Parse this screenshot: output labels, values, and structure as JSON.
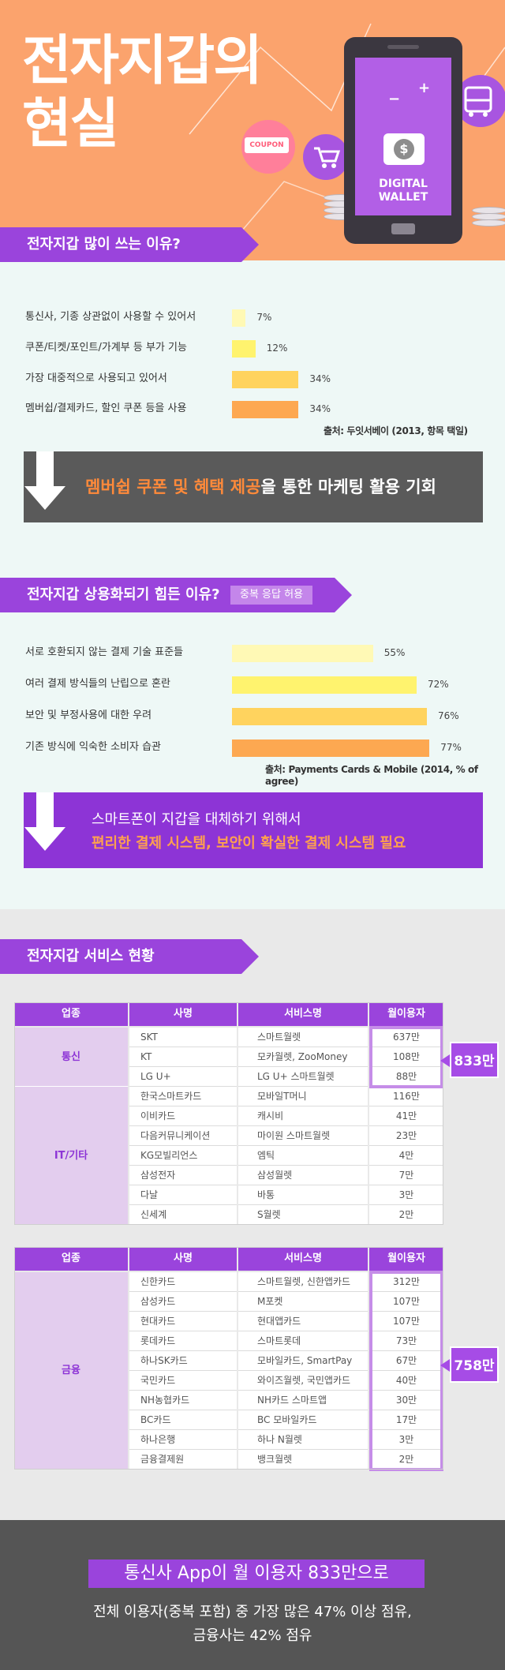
{
  "hero": {
    "title_line1": "전자지갑의",
    "title_line2": "현실",
    "coupon": "COUPON",
    "wallet_line1": "DIGITAL",
    "wallet_line2": "WALLET",
    "plus": "+",
    "minus": "−"
  },
  "section1": {
    "tag": "전자지갑 많이 쓰는 이유?",
    "bars": [
      {
        "label": "통신사, 기종 상관없이 사용할 수 있어서",
        "value": 7,
        "value_text": "7%",
        "color": "#fff9b5"
      },
      {
        "label": "쿠폰/티켓/포인트/가계부 등 부가 기능",
        "value": 12,
        "value_text": "12%",
        "color": "#fff36e"
      },
      {
        "label": "가장 대중적으로 사용되고 있어서",
        "value": 34,
        "value_text": "34%",
        "color": "#ffd35e"
      },
      {
        "label": "멤버쉽/결제카드, 할인 쿠폰 등을 사용",
        "value": 34,
        "value_text": "34%",
        "color": "#fda851"
      }
    ],
    "source": "출처: 두잇서베이 (2013, 항목 택일)",
    "callout_highlight": "멤버쉽 쿠폰 및 혜택 제공",
    "callout_rest": "을 통한 마케팅 활용 기회"
  },
  "section2": {
    "tag": "전자지갑 상용화되기 힘든 이유?",
    "note": "중복 응답 허용",
    "bars": [
      {
        "label": "서로 호환되지 않는 결제 기술 표준들",
        "value": 55,
        "value_text": "55%",
        "color": "#fff9b5"
      },
      {
        "label": "여러 결제 방식들의 난립으로 혼란",
        "value": 72,
        "value_text": "72%",
        "color": "#fff36e"
      },
      {
        "label": "보안 및 부정사용에 대한 우려",
        "value": 76,
        "value_text": "76%",
        "color": "#ffd35e"
      },
      {
        "label": "기존 방식에 익숙한 소비자 습관",
        "value": 77,
        "value_text": "77%",
        "color": "#fda851"
      }
    ],
    "source": "출처: Payments Cards & Mobile (2014, % of agree)",
    "callout_line1": "스마트폰이 지갑을 대체하기 위해서",
    "callout_line2": "편리한 결제 시스템, 보안이 확실한 결제 시스템 필요"
  },
  "section3": {
    "tag": "전자지갑 서비스 현황",
    "headers": [
      "업종",
      "사명",
      "서비스명",
      "월이용자"
    ],
    "table1": {
      "groups": [
        {
          "industry": "통신",
          "rows": [
            {
              "company": "SKT",
              "service": "스마트월렛",
              "users": "637만"
            },
            {
              "company": "KT",
              "service": "모카월렛, ZooMoney",
              "users": "108만"
            },
            {
              "company": "LG U+",
              "service": "LG U+ 스마트월렛",
              "users": "88만"
            }
          ]
        },
        {
          "industry": "IT/기타",
          "rows": [
            {
              "company": "한국스마트카드",
              "service": "모바일T머니",
              "users": "116만"
            },
            {
              "company": "이비카드",
              "service": "캐시비",
              "users": "41만"
            },
            {
              "company": "다음커뮤니케이션",
              "service": "마이원 스마트월렛",
              "users": "23만"
            },
            {
              "company": "KG모빌리언스",
              "service": "엠틱",
              "users": "4만"
            },
            {
              "company": "삼성전자",
              "service": "삼성월렛",
              "users": "7만"
            },
            {
              "company": "다날",
              "service": "바통",
              "users": "3만"
            },
            {
              "company": "신세계",
              "service": "S월렛",
              "users": "2만"
            }
          ]
        }
      ],
      "total": "833만"
    },
    "table2": {
      "groups": [
        {
          "industry": "금융",
          "rows": [
            {
              "company": "신한카드",
              "service": "스마트월렛, 신한앱카드",
              "users": "312만"
            },
            {
              "company": "삼성카드",
              "service": "M포켓",
              "users": "107만"
            },
            {
              "company": "현대카드",
              "service": "현대앱카드",
              "users": "107만"
            },
            {
              "company": "롯데카드",
              "service": "스마트롯데",
              "users": "73만"
            },
            {
              "company": "하나SK카드",
              "service": "모바일카드, SmartPay",
              "users": "67만"
            },
            {
              "company": "국민카드",
              "service": "와이즈월렛, 국민앱카드",
              "users": "40만"
            },
            {
              "company": "NH농협카드",
              "service": "NH카드 스마트앱",
              "users": "30만"
            },
            {
              "company": "BC카드",
              "service": "BC 모바일카드",
              "users": "17만"
            },
            {
              "company": "하나은행",
              "service": "하나 N월렛",
              "users": "3만"
            },
            {
              "company": "금융결제원",
              "service": "뱅크월렛",
              "users": "2만"
            }
          ]
        }
      ],
      "total": "758만"
    }
  },
  "footer": {
    "headline": "통신사 App이 월 이용자 833만으로",
    "line1": "전체 이용자(중복 포함) 중 가장 많은 47% 이상 점유,",
    "line2": "금융사는 42% 점유"
  },
  "colors": {
    "purple": "#9a44dc",
    "orange": "#fba36d",
    "accent_orange": "#ff7e28",
    "dark": "#555555"
  }
}
